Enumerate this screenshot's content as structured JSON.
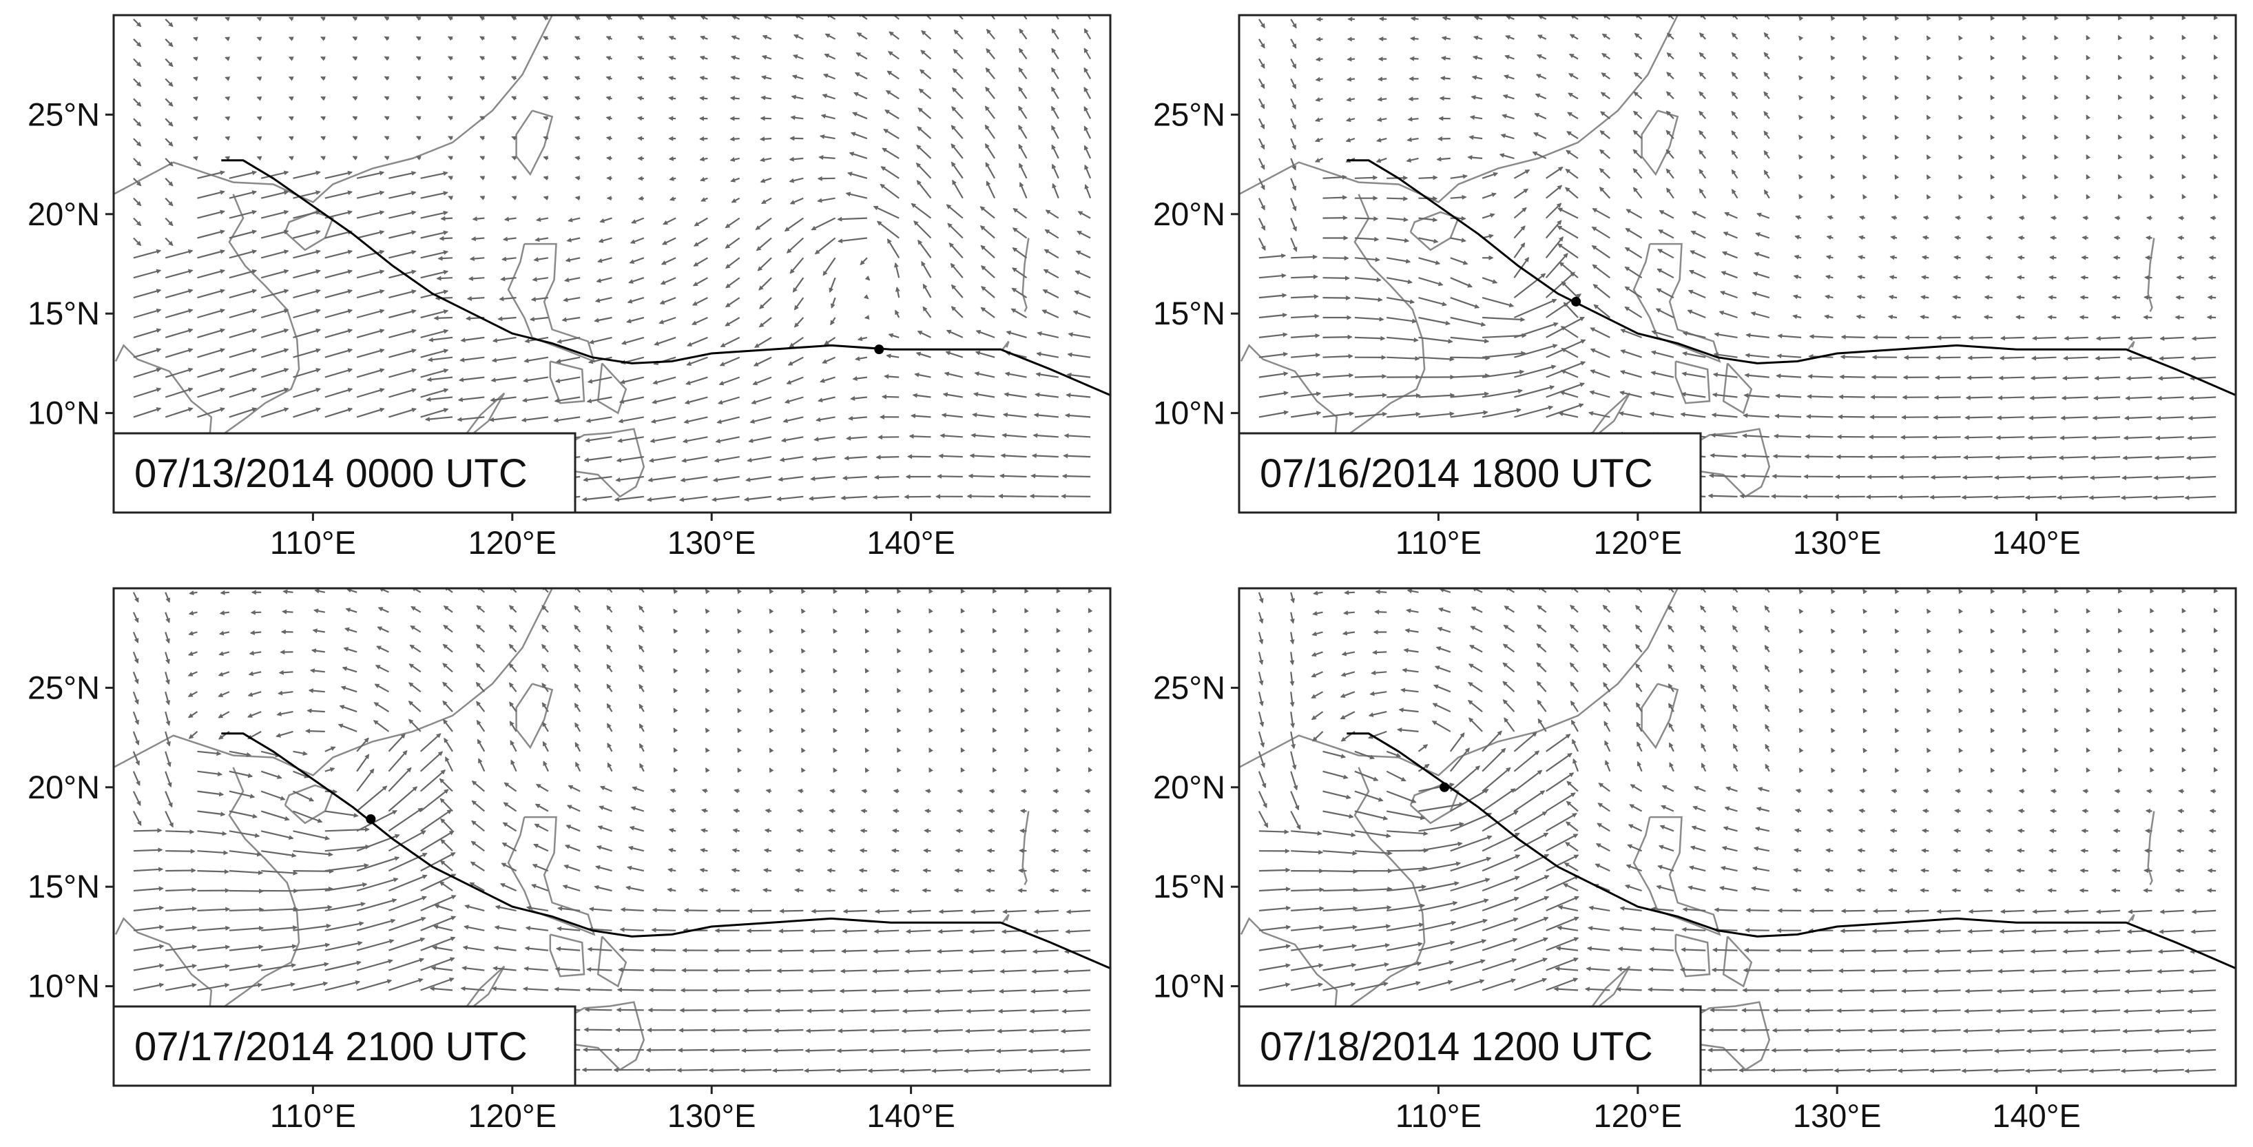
{
  "figure": {
    "lat_ticks": [
      "25°N",
      "20°N",
      "15°N",
      "10°N"
    ],
    "lon_ticks": [
      "110°E",
      "120°E",
      "130°E",
      "140°E"
    ]
  },
  "panels": [
    {
      "id": "a",
      "timestamp": "07/13/2014 0000 UTC",
      "typhoon_position": {
        "lon": 138.4,
        "lat": 13.2
      },
      "vortex_center": {
        "lon": 138,
        "lat": 18
      }
    },
    {
      "id": "b",
      "timestamp": "07/16/2014 1800 UTC",
      "typhoon_position": {
        "lon": 116.9,
        "lat": 15.6
      },
      "vortex_center": {
        "lon": 113,
        "lat": 16
      }
    },
    {
      "id": "c",
      "timestamp": "07/17/2014 2100 UTC",
      "typhoon_position": {
        "lon": 112.9,
        "lat": 18.4
      },
      "vortex_center": {
        "lon": 111,
        "lat": 19
      }
    },
    {
      "id": "d",
      "timestamp": "07/18/2014 1200 UTC",
      "typhoon_position": {
        "lon": 110.3,
        "lat": 20.0
      },
      "vortex_center": {
        "lon": 109,
        "lat": 20
      }
    }
  ],
  "map": {
    "lon_range": [
      100,
      150
    ],
    "lat_range": [
      5,
      30
    ],
    "track_color": "#000000",
    "vector_color": "#666666",
    "coast_color": "#8a8a8a",
    "track": [
      {
        "lon": 105.4,
        "lat": 22.7
      },
      {
        "lon": 106.5,
        "lat": 22.7
      },
      {
        "lon": 108.0,
        "lat": 21.8
      },
      {
        "lon": 110.0,
        "lat": 20.4
      },
      {
        "lon": 112.0,
        "lat": 19.0
      },
      {
        "lon": 114.0,
        "lat": 17.4
      },
      {
        "lon": 116.0,
        "lat": 16.0
      },
      {
        "lon": 118.0,
        "lat": 15.0
      },
      {
        "lon": 120.0,
        "lat": 14.0
      },
      {
        "lon": 122.0,
        "lat": 13.5
      },
      {
        "lon": 124.0,
        "lat": 12.8
      },
      {
        "lon": 126.0,
        "lat": 12.5
      },
      {
        "lon": 128.0,
        "lat": 12.6
      },
      {
        "lon": 130.0,
        "lat": 13.0
      },
      {
        "lon": 133.0,
        "lat": 13.2
      },
      {
        "lon": 136.0,
        "lat": 13.4
      },
      {
        "lon": 139.0,
        "lat": 13.2
      },
      {
        "lon": 142.0,
        "lat": 13.2
      },
      {
        "lon": 144.5,
        "lat": 13.2
      },
      {
        "lon": 147.0,
        "lat": 12.2
      },
      {
        "lon": 150.0,
        "lat": 10.9
      }
    ],
    "coastlines": [
      [
        {
          "lon": 100,
          "lat": 21.0
        },
        {
          "lon": 103,
          "lat": 22.6
        },
        {
          "lon": 106,
          "lat": 21.6
        },
        {
          "lon": 108,
          "lat": 21.5
        },
        {
          "lon": 110,
          "lat": 20.6
        },
        {
          "lon": 111,
          "lat": 21.5
        },
        {
          "lon": 113,
          "lat": 22.3
        },
        {
          "lon": 115,
          "lat": 22.8
        },
        {
          "lon": 117,
          "lat": 23.6
        },
        {
          "lon": 119,
          "lat": 25.2
        },
        {
          "lon": 120.5,
          "lat": 27.0
        },
        {
          "lon": 121.5,
          "lat": 29.0
        },
        {
          "lon": 122,
          "lat": 30.0
        }
      ],
      [
        {
          "lon": 106,
          "lat": 21.0
        },
        {
          "lon": 106.5,
          "lat": 19.8
        },
        {
          "lon": 105.8,
          "lat": 18.6
        },
        {
          "lon": 106.6,
          "lat": 17.4
        },
        {
          "lon": 107.6,
          "lat": 16.4
        },
        {
          "lon": 108.7,
          "lat": 15.2
        },
        {
          "lon": 109.2,
          "lat": 13.7
        },
        {
          "lon": 109.3,
          "lat": 12.2
        },
        {
          "lon": 108.9,
          "lat": 11.2
        },
        {
          "lon": 107.6,
          "lat": 10.5
        },
        {
          "lon": 106.7,
          "lat": 9.8
        },
        {
          "lon": 105.3,
          "lat": 8.8
        },
        {
          "lon": 104.8,
          "lat": 8.6
        },
        {
          "lon": 104.9,
          "lat": 9.8
        },
        {
          "lon": 103.9,
          "lat": 10.6
        },
        {
          "lon": 102.8,
          "lat": 12.1
        },
        {
          "lon": 101.2,
          "lat": 12.7
        },
        {
          "lon": 100.5,
          "lat": 13.4
        },
        {
          "lon": 100.1,
          "lat": 12.6
        }
      ],
      [
        {
          "lon": 108.6,
          "lat": 19.1
        },
        {
          "lon": 109.6,
          "lat": 18.2
        },
        {
          "lon": 110.6,
          "lat": 18.8
        },
        {
          "lon": 111.0,
          "lat": 19.8
        },
        {
          "lon": 110.1,
          "lat": 20.1
        },
        {
          "lon": 108.8,
          "lat": 19.6
        },
        {
          "lon": 108.6,
          "lat": 19.1
        }
      ],
      [
        {
          "lon": 121.0,
          "lat": 25.2
        },
        {
          "lon": 122.0,
          "lat": 24.9
        },
        {
          "lon": 121.6,
          "lat": 23.4
        },
        {
          "lon": 120.9,
          "lat": 22.0
        },
        {
          "lon": 120.2,
          "lat": 22.9
        },
        {
          "lon": 120.2,
          "lat": 24.0
        },
        {
          "lon": 121.0,
          "lat": 25.2
        }
      ],
      [
        {
          "lon": 120.6,
          "lat": 18.5
        },
        {
          "lon": 122.2,
          "lat": 18.5
        },
        {
          "lon": 122.1,
          "lat": 16.7
        },
        {
          "lon": 121.6,
          "lat": 15.6
        },
        {
          "lon": 122.0,
          "lat": 14.2
        },
        {
          "lon": 123.8,
          "lat": 13.6
        },
        {
          "lon": 124.1,
          "lat": 12.6
        },
        {
          "lon": 122.6,
          "lat": 13.2
        },
        {
          "lon": 121.0,
          "lat": 13.8
        },
        {
          "lon": 120.6,
          "lat": 14.8
        },
        {
          "lon": 119.8,
          "lat": 16.2
        },
        {
          "lon": 120.4,
          "lat": 17.6
        },
        {
          "lon": 120.6,
          "lat": 18.5
        }
      ],
      [
        {
          "lon": 121.9,
          "lat": 12.6
        },
        {
          "lon": 123.5,
          "lat": 12.2
        },
        {
          "lon": 123.6,
          "lat": 10.6
        },
        {
          "lon": 122.4,
          "lat": 10.5
        },
        {
          "lon": 121.9,
          "lat": 11.8
        },
        {
          "lon": 121.9,
          "lat": 12.6
        }
      ],
      [
        {
          "lon": 124.5,
          "lat": 12.5
        },
        {
          "lon": 125.7,
          "lat": 11.2
        },
        {
          "lon": 125.3,
          "lat": 10.0
        },
        {
          "lon": 124.3,
          "lat": 10.6
        },
        {
          "lon": 124.5,
          "lat": 12.5
        }
      ],
      [
        {
          "lon": 122.0,
          "lat": 8.0
        },
        {
          "lon": 123.6,
          "lat": 8.9
        },
        {
          "lon": 124.9,
          "lat": 9.0
        },
        {
          "lon": 126.1,
          "lat": 9.2
        },
        {
          "lon": 126.6,
          "lat": 7.3
        },
        {
          "lon": 126.2,
          "lat": 6.3
        },
        {
          "lon": 125.4,
          "lat": 5.8
        },
        {
          "lon": 124.3,
          "lat": 6.9
        },
        {
          "lon": 122.2,
          "lat": 7.2
        },
        {
          "lon": 122.0,
          "lat": 8.0
        }
      ],
      [
        {
          "lon": 117.2,
          "lat": 8.3
        },
        {
          "lon": 118.8,
          "lat": 9.6
        },
        {
          "lon": 119.6,
          "lat": 11.0
        },
        {
          "lon": 118.4,
          "lat": 9.9
        },
        {
          "lon": 117.2,
          "lat": 8.3
        }
      ],
      [
        {
          "lon": 145.7,
          "lat": 15.1
        },
        {
          "lon": 145.8,
          "lat": 15.3
        },
        {
          "lon": 145.6,
          "lat": 16.0
        },
        {
          "lon": 145.7,
          "lat": 17.5
        },
        {
          "lon": 145.9,
          "lat": 18.8
        }
      ],
      [
        {
          "lon": 144.6,
          "lat": 13.2
        },
        {
          "lon": 144.9,
          "lat": 13.6
        },
        {
          "lon": 144.8,
          "lat": 13.3
        }
      ]
    ]
  }
}
